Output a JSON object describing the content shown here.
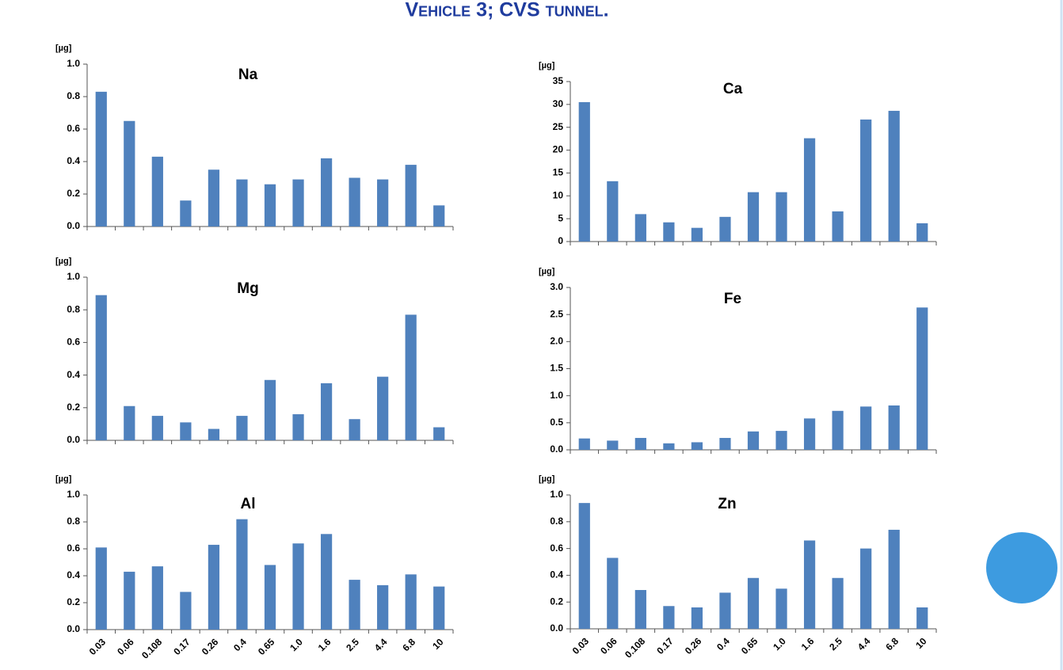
{
  "title": "Vehicle 3; CVS tunnel.",
  "chart_data": [
    {
      "type": "bar",
      "title": "Na",
      "ylabel": "[µg]",
      "color": "#4f81bd",
      "categories": [
        null,
        null,
        null,
        null,
        null,
        null,
        null,
        null,
        null,
        null,
        null,
        null,
        null
      ],
      "values": [
        0.83,
        0.65,
        0.43,
        0.16,
        0.35,
        0.29,
        0.26,
        0.29,
        0.42,
        0.3,
        0.29,
        0.38,
        0.13
      ],
      "ylim": [
        0,
        1
      ],
      "yticks": [
        {
          "value": 0,
          "label": "0.0"
        },
        0.2,
        0.4,
        0.6,
        0.8,
        {
          "value": 1,
          "label": "1.0"
        }
      ]
    },
    {
      "type": "bar",
      "title": "Ca",
      "ylabel": "[µg]",
      "color": "#4f81bd",
      "categories": [
        null,
        null,
        null,
        null,
        null,
        null,
        null,
        null,
        null,
        null,
        null,
        null,
        null
      ],
      "values": [
        30.5,
        13.2,
        6.0,
        4.2,
        3.0,
        5.4,
        10.8,
        10.8,
        22.6,
        6.6,
        26.7,
        28.6,
        4.0
      ],
      "ylim": [
        0,
        35
      ],
      "yticks": [
        0,
        5,
        10,
        15,
        20,
        25,
        30,
        35
      ]
    },
    {
      "type": "bar",
      "title": "Mg",
      "ylabel": "[µg]",
      "color": "#4f81bd",
      "categories": [
        null,
        null,
        null,
        null,
        null,
        null,
        null,
        null,
        null,
        null,
        null,
        null,
        null
      ],
      "values": [
        0.89,
        0.21,
        0.15,
        0.11,
        0.07,
        0.15,
        0.37,
        0.16,
        0.35,
        0.13,
        0.39,
        0.77,
        0.08
      ],
      "ylim": [
        0,
        1
      ],
      "yticks": [
        {
          "value": 0,
          "label": "0.0"
        },
        0.2,
        0.4,
        0.6,
        0.8,
        {
          "value": 1,
          "label": "1.0"
        }
      ]
    },
    {
      "type": "bar",
      "title": "Fe",
      "ylabel": "[µg]",
      "color": "#4f81bd",
      "categories": [
        null,
        null,
        null,
        null,
        null,
        null,
        null,
        null,
        null,
        null,
        null,
        null,
        null
      ],
      "values": [
        0.21,
        0.17,
        0.22,
        0.12,
        0.14,
        0.22,
        0.34,
        0.35,
        0.58,
        0.72,
        0.8,
        0.82,
        2.63
      ],
      "ylim": [
        0,
        3
      ],
      "yticks": [
        {
          "value": 0,
          "label": "0.0"
        },
        0.5,
        {
          "value": 1,
          "label": "1.0"
        },
        1.5,
        {
          "value": 2,
          "label": "2.0"
        },
        2.5,
        {
          "value": 3,
          "label": "3.0"
        }
      ]
    },
    {
      "type": "bar",
      "title": "Al",
      "ylabel": "[µg]",
      "color": "#4f81bd",
      "categories": [
        "0.03",
        "0.06",
        "0.108",
        "0.17",
        "0.26",
        "0.4",
        "0.65",
        "1.0",
        "1.6",
        "2.5",
        "4.4",
        "6.8",
        "10"
      ],
      "values": [
        0.61,
        0.43,
        0.47,
        0.28,
        0.63,
        0.82,
        0.48,
        0.64,
        0.71,
        0.37,
        0.33,
        0.41,
        0.32
      ],
      "ylim": [
        0,
        1
      ],
      "yticks": [
        {
          "value": 0,
          "label": "0.0"
        },
        0.2,
        0.4,
        0.6,
        0.8,
        {
          "value": 1,
          "label": "1.0"
        }
      ]
    },
    {
      "type": "bar",
      "title": "Zn",
      "ylabel": "[µg]",
      "color": "#4f81bd",
      "categories": [
        "0.03",
        "0.06",
        "0.108",
        "0.17",
        "0.26",
        "0.4",
        "0.65",
        "1.0",
        "1.6",
        "2.5",
        "4.4",
        "6.8",
        "10"
      ],
      "values": [
        0.94,
        0.53,
        0.29,
        0.17,
        0.16,
        0.27,
        0.38,
        0.3,
        0.66,
        0.38,
        0.6,
        0.74,
        0.16
      ],
      "ylim": [
        0,
        1
      ],
      "yticks": [
        {
          "value": 0,
          "label": "0.0"
        },
        0.2,
        0.4,
        0.6,
        0.8,
        {
          "value": 1,
          "label": "1.0"
        }
      ]
    }
  ]
}
